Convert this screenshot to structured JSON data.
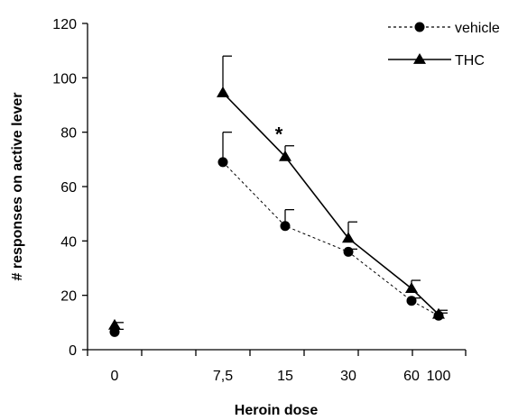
{
  "chart_data": {
    "type": "line",
    "title": "",
    "xlabel": "Heroin dose",
    "ylabel": "# responses on active lever",
    "categories": [
      "0",
      "7,5",
      "15",
      "30",
      "60",
      "100"
    ],
    "ylim": [
      0,
      120
    ],
    "yticks": [
      "0",
      "20",
      "40",
      "60",
      "80",
      "100",
      "120"
    ],
    "legend_position": "top-right",
    "series": [
      {
        "name": "vehicle",
        "marker": "circle",
        "line_style": "dotted",
        "points": [
          {
            "x": "0",
            "y": 6.5,
            "err": 1
          },
          {
            "x": "7,5",
            "y": 69,
            "err": 11
          },
          {
            "x": "15",
            "y": 45.5,
            "err": 6
          },
          {
            "x": "30",
            "y": 36,
            "err": 1
          },
          {
            "x": "60",
            "y": 18,
            "err": 1
          },
          {
            "x": "100",
            "y": 12.5,
            "err": 1
          }
        ]
      },
      {
        "name": "THC",
        "marker": "triangle",
        "line_style": "solid",
        "points": [
          {
            "x": "0",
            "y": 9,
            "err": 1
          },
          {
            "x": "7,5",
            "y": 94.5,
            "err": 13.5
          },
          {
            "x": "15",
            "y": 71,
            "err": 4
          },
          {
            "x": "30",
            "y": 41,
            "err": 6
          },
          {
            "x": "60",
            "y": 22.5,
            "err": 3
          },
          {
            "x": "100",
            "y": 13,
            "err": 1.5
          }
        ]
      }
    ],
    "annotations": [
      {
        "text": "*",
        "x": "15",
        "y": 78
      }
    ]
  }
}
